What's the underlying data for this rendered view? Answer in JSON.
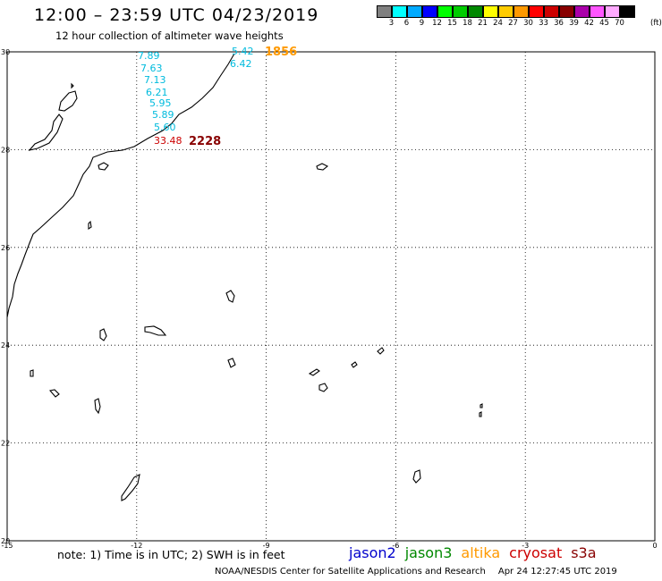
{
  "header": {
    "title": "12:00 – 23:59 UTC 04/23/2019",
    "subtitle": "12 hour collection of altimeter wave heights"
  },
  "legend": {
    "unit": "(ft)",
    "colors": [
      "#808080",
      "#00ffff",
      "#00aaff",
      "#0000ff",
      "#00ff00",
      "#00cc00",
      "#008800",
      "#ffff00",
      "#ffcc00",
      "#ff9900",
      "#ff0000",
      "#cc0000",
      "#880000",
      "#aa00aa",
      "#ff55ff",
      "#ffaaff",
      "#000000"
    ],
    "labels": [
      "3",
      "6",
      "9",
      "12",
      "15",
      "18",
      "21",
      "24",
      "27",
      "30",
      "33",
      "36",
      "39",
      "42",
      "45",
      "70"
    ]
  },
  "map": {
    "lon_ticks": [
      "-15",
      "-12",
      "-9",
      "-6",
      "-3",
      "0"
    ],
    "lat_ticks": [
      "30",
      "28",
      "26",
      "24",
      "22",
      "20"
    ],
    "grid_lon": [
      -15,
      -12,
      -9,
      -6,
      -3,
      0
    ],
    "grid_lat": [
      30,
      28,
      26,
      24,
      22,
      20
    ],
    "lon_range": [
      -15,
      0
    ],
    "lat_range": [
      20,
      30
    ]
  },
  "tracks": [
    {
      "time": "1856",
      "time_color": "#ff9900",
      "values": [
        {
          "text": "5.42",
          "color": "#00bbdd"
        },
        {
          "text": "6.42",
          "color": "#00bbdd"
        },
        {
          "text": "7.89",
          "color": "#00bbdd"
        },
        {
          "text": "7.63",
          "color": "#00bbdd"
        },
        {
          "text": "7.13",
          "color": "#00bbdd"
        },
        {
          "text": "6.21",
          "color": "#00bbdd"
        },
        {
          "text": "5.95",
          "color": "#00bbdd"
        },
        {
          "text": "5.89",
          "color": "#00bbdd"
        },
        {
          "text": "5.60",
          "color": "#00bbdd"
        }
      ]
    },
    {
      "time": "2228",
      "time_color": "#880000",
      "values": [
        {
          "text": "33.48",
          "color": "#cc0000"
        }
      ]
    }
  ],
  "footer": {
    "note": "note: 1) Time is in UTC; 2) SWH is in feet",
    "satellites": [
      {
        "name": "jason2",
        "color": "#0000cc"
      },
      {
        "name": "jason3",
        "color": "#008800"
      },
      {
        "name": "altika",
        "color": "#ff9900"
      },
      {
        "name": "cryosat",
        "color": "#cc0000"
      },
      {
        "name": "s3a",
        "color": "#880000"
      }
    ],
    "credit": "NOAA/NESDIS Center for Satellite Applications and Research",
    "timestamp": "Apr 24 12:27:45 UTC 2019"
  }
}
